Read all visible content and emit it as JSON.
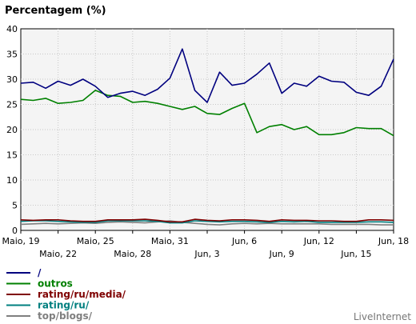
{
  "chart_data": {
    "type": "line",
    "title": "Percentagem (%)",
    "xlabel": "",
    "ylabel": "",
    "ylim": [
      0,
      40
    ],
    "yticks": [
      0,
      5,
      10,
      15,
      20,
      25,
      30,
      35,
      40
    ],
    "grid": true,
    "legend_position": "bottom-left",
    "x_tick_labels_top": [
      "Maio, 19",
      "Maio, 25",
      "Maio, 31",
      "Jun, 6",
      "Jun, 12",
      "Jun, 18"
    ],
    "x_tick_labels_bottom": [
      "Maio, 22",
      "Maio, 28",
      "Jun, 3",
      "Jun, 9",
      "Jun, 15"
    ],
    "x_days": 31,
    "series": [
      {
        "name": "/",
        "color": "#00007f",
        "values": [
          29.2,
          29.4,
          28.2,
          29.6,
          28.8,
          30.0,
          28.6,
          26.4,
          27.2,
          27.6,
          26.8,
          28.0,
          30.2,
          36.0,
          27.8,
          25.4,
          31.4,
          28.8,
          29.2,
          31.0,
          33.2,
          27.2,
          29.2,
          28.6,
          30.6,
          29.6,
          29.4,
          27.4,
          26.8,
          28.6,
          34.0
        ]
      },
      {
        "name": "outros",
        "color": "#008000",
        "values": [
          26.0,
          25.8,
          26.2,
          25.2,
          25.4,
          25.8,
          27.8,
          26.8,
          26.6,
          25.4,
          25.6,
          25.2,
          24.6,
          24.0,
          24.6,
          23.2,
          23.0,
          24.2,
          25.2,
          19.4,
          20.6,
          21.0,
          20.0,
          20.6,
          19.0,
          19.0,
          19.4,
          20.4,
          20.2,
          20.2,
          18.8
        ]
      },
      {
        "name": "rating/ru/media/",
        "color": "#7f0000",
        "values": [
          2.1,
          2.0,
          2.1,
          2.1,
          1.9,
          1.8,
          1.8,
          2.1,
          2.1,
          2.1,
          2.2,
          2.0,
          1.7,
          1.7,
          2.2,
          2.0,
          1.9,
          2.1,
          2.1,
          2.0,
          1.8,
          2.1,
          2.0,
          2.0,
          1.9,
          1.9,
          1.8,
          1.8,
          2.1,
          2.1,
          2.0
        ]
      },
      {
        "name": "rating/ru/",
        "color": "#007f7f",
        "values": [
          1.8,
          1.9,
          1.9,
          1.8,
          1.7,
          1.6,
          1.6,
          1.9,
          1.9,
          1.9,
          1.9,
          1.8,
          1.5,
          1.5,
          1.9,
          1.8,
          1.7,
          1.8,
          1.8,
          1.7,
          1.6,
          1.8,
          1.7,
          1.8,
          1.6,
          1.6,
          1.6,
          1.6,
          1.7,
          1.7,
          1.6
        ]
      },
      {
        "name": "top/blogs/",
        "color": "#7f7f7f",
        "values": [
          1.2,
          1.3,
          1.4,
          1.3,
          1.4,
          1.5,
          1.4,
          1.6,
          1.7,
          1.6,
          1.5,
          1.7,
          1.9,
          1.6,
          1.4,
          1.2,
          1.1,
          1.3,
          1.4,
          1.3,
          1.4,
          1.3,
          1.3,
          1.3,
          1.3,
          1.2,
          1.2,
          1.2,
          1.2,
          1.1,
          1.1
        ]
      }
    ]
  },
  "brand": "LiveInternet"
}
